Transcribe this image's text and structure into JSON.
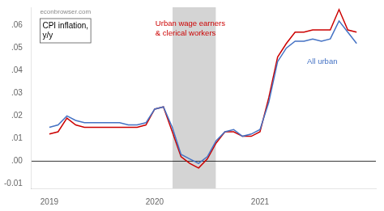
{
  "chart_data": {
    "type": "line",
    "x": [
      2019.0,
      2019.083,
      2019.167,
      2019.25,
      2019.333,
      2019.417,
      2019.5,
      2019.583,
      2019.667,
      2019.75,
      2019.833,
      2019.917,
      2020.0,
      2020.083,
      2020.167,
      2020.25,
      2020.333,
      2020.417,
      2020.5,
      2020.583,
      2020.667,
      2020.75,
      2020.833,
      2020.917,
      2021.0,
      2021.083,
      2021.167,
      2021.25,
      2021.333,
      2021.417,
      2021.5,
      2021.583,
      2021.667,
      2021.75,
      2021.833,
      2021.917
    ],
    "series": [
      {
        "name": "All urban",
        "color": "#4472c4",
        "values": [
          0.015,
          0.016,
          0.02,
          0.018,
          0.017,
          0.017,
          0.017,
          0.017,
          0.017,
          0.016,
          0.016,
          0.017,
          0.023,
          0.024,
          0.015,
          0.003,
          0.001,
          -0.001,
          0.002,
          0.009,
          0.013,
          0.014,
          0.011,
          0.012,
          0.014,
          0.026,
          0.044,
          0.05,
          0.053,
          0.053,
          0.054,
          0.053,
          0.054,
          0.062,
          0.057,
          0.052
        ]
      },
      {
        "name": "Urban wage earners\n& clerical workers",
        "color": "#cc0000",
        "values": [
          0.012,
          0.013,
          0.019,
          0.016,
          0.015,
          0.015,
          0.015,
          0.015,
          0.015,
          0.015,
          0.015,
          0.016,
          0.023,
          0.024,
          0.013,
          0.002,
          -0.001,
          -0.003,
          0.001,
          0.008,
          0.013,
          0.013,
          0.011,
          0.011,
          0.013,
          0.028,
          0.046,
          0.052,
          0.057,
          0.057,
          0.058,
          0.058,
          0.058,
          0.067,
          0.058,
          0.057
        ]
      }
    ],
    "xlim": [
      2018.83,
      2022.1
    ],
    "xticks": [
      2019,
      2020,
      2021
    ],
    "ylim": [
      -0.012,
      0.068
    ],
    "yticks": [
      {
        "value": -0.01,
        "label": "-0.01"
      },
      {
        "value": 0.0,
        "label": ".00"
      },
      {
        "value": 0.01,
        "label": ".01"
      },
      {
        "value": 0.02,
        "label": ".02"
      },
      {
        "value": 0.03,
        "label": ".03"
      },
      {
        "value": 0.04,
        "label": ".04"
      },
      {
        "value": 0.05,
        "label": ".05"
      },
      {
        "value": 0.06,
        "label": ".06"
      }
    ],
    "grid": false,
    "recession": {
      "start": 2020.17,
      "end": 2020.58,
      "color": "#cccccc"
    },
    "annotations": [
      "econbrowser.com",
      "CPI inflation,\ny/y"
    ]
  }
}
